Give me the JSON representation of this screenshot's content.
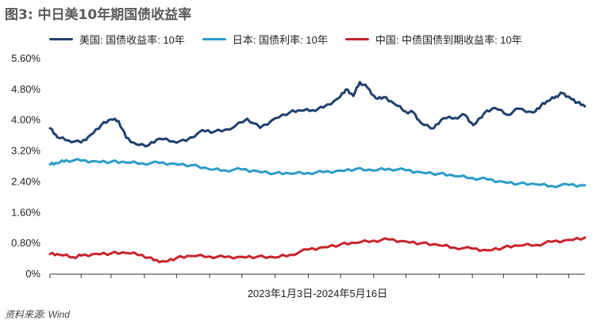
{
  "title": "图3: 中日美10年期国债收益率",
  "source": "资料来源: Wind",
  "chart_data": {
    "type": "line",
    "title": "图3: 中日美10年期国债收益率",
    "xlabel": "2023年1月3日-2024年5月16日",
    "ylabel": "",
    "x_range": [
      "2023-01-03",
      "2024-05-16"
    ],
    "ylim": [
      0,
      5.6
    ],
    "yticks": [
      "5.60%",
      "4.80%",
      "4.00%",
      "3.20%",
      "2.40%",
      "1.60%",
      "0.80%",
      "0%"
    ],
    "ytick_values": [
      5.6,
      4.8,
      4.0,
      3.2,
      2.4,
      1.6,
      0.8,
      0
    ],
    "grid": false,
    "legend_position": "top",
    "series": [
      {
        "name": "美国: 国债收益率: 10年",
        "color": "#1f3f6e",
        "x": [
          "2023-01-03",
          "2023-01-10",
          "2023-01-20",
          "2023-02-01",
          "2023-02-10",
          "2023-02-20",
          "2023-03-01",
          "2023-03-08",
          "2023-03-15",
          "2023-03-24",
          "2023-04-05",
          "2023-04-15",
          "2023-04-28",
          "2023-05-10",
          "2023-05-25",
          "2023-06-05",
          "2023-06-20",
          "2023-07-06",
          "2023-07-18",
          "2023-08-01",
          "2023-08-15",
          "2023-08-25",
          "2023-09-05",
          "2023-09-15",
          "2023-09-29",
          "2023-10-06",
          "2023-10-13",
          "2023-10-19",
          "2023-10-26",
          "2023-11-03",
          "2023-11-10",
          "2023-11-20",
          "2023-12-01",
          "2023-12-08",
          "2023-12-15",
          "2023-12-27",
          "2024-01-05",
          "2024-01-16",
          "2024-01-25",
          "2024-02-02",
          "2024-02-12",
          "2024-02-22",
          "2024-03-05",
          "2024-03-15",
          "2024-03-29",
          "2024-04-05",
          "2024-04-12",
          "2024-04-19",
          "2024-04-25",
          "2024-05-02",
          "2024-05-09",
          "2024-05-16"
        ],
        "values": [
          3.79,
          3.55,
          3.48,
          3.42,
          3.62,
          3.88,
          4.02,
          3.98,
          3.55,
          3.38,
          3.35,
          3.52,
          3.45,
          3.46,
          3.74,
          3.7,
          3.76,
          4.04,
          3.8,
          4.05,
          4.21,
          4.25,
          4.26,
          4.33,
          4.57,
          4.8,
          4.63,
          4.99,
          4.85,
          4.57,
          4.6,
          4.43,
          4.22,
          4.2,
          3.93,
          3.79,
          4.05,
          4.06,
          4.14,
          3.87,
          4.18,
          4.32,
          4.14,
          4.3,
          4.2,
          4.38,
          4.5,
          4.62,
          4.7,
          4.59,
          4.46,
          4.36
        ]
      },
      {
        "name": "日本: 国债利率: 10年",
        "color": "#2b9cc8",
        "x": [
          "2023-01-03",
          "2023-01-10",
          "2023-01-18",
          "2023-02-01",
          "2023-02-15",
          "2023-03-01",
          "2023-03-15",
          "2023-03-30",
          "2023-04-15",
          "2023-04-29",
          "2023-05-15",
          "2023-06-01",
          "2023-06-15",
          "2023-07-01",
          "2023-07-15",
          "2023-08-01",
          "2023-08-15",
          "2023-09-01",
          "2023-09-15",
          "2023-10-01",
          "2023-10-15",
          "2023-11-01",
          "2023-11-15",
          "2023-12-01",
          "2023-12-15",
          "2024-01-01",
          "2024-01-15",
          "2024-02-01",
          "2024-02-15",
          "2024-03-01",
          "2024-03-15",
          "2024-04-01",
          "2024-04-15",
          "2024-05-01",
          "2024-05-16"
        ],
        "values": [
          2.85,
          2.88,
          2.96,
          2.95,
          2.93,
          2.92,
          2.9,
          2.88,
          2.89,
          2.87,
          2.83,
          2.72,
          2.7,
          2.72,
          2.68,
          2.62,
          2.61,
          2.63,
          2.65,
          2.69,
          2.73,
          2.69,
          2.74,
          2.7,
          2.65,
          2.61,
          2.55,
          2.5,
          2.46,
          2.4,
          2.35,
          2.33,
          2.29,
          2.32,
          2.31
        ]
      },
      {
        "name": "中国: 中债国债到期收益率: 10年",
        "color": "#c8232c",
        "x": [
          "2023-01-03",
          "2023-01-12",
          "2023-01-25",
          "2023-02-01",
          "2023-02-15",
          "2023-03-01",
          "2023-03-15",
          "2023-03-30",
          "2023-04-10",
          "2023-04-20",
          "2023-05-01",
          "2023-05-15",
          "2023-06-01",
          "2023-06-15",
          "2023-07-01",
          "2023-07-15",
          "2023-08-01",
          "2023-08-15",
          "2023-09-01",
          "2023-09-15",
          "2023-10-01",
          "2023-10-15",
          "2023-11-01",
          "2023-11-15",
          "2023-12-01",
          "2023-12-15",
          "2024-01-01",
          "2024-01-15",
          "2024-02-01",
          "2024-02-15",
          "2024-03-01",
          "2024-03-15",
          "2024-04-01",
          "2024-04-15",
          "2024-05-01",
          "2024-05-16"
        ],
        "values": [
          0.52,
          0.5,
          0.44,
          0.48,
          0.53,
          0.54,
          0.55,
          0.5,
          0.36,
          0.33,
          0.42,
          0.47,
          0.46,
          0.44,
          0.45,
          0.45,
          0.43,
          0.5,
          0.64,
          0.7,
          0.77,
          0.81,
          0.87,
          0.9,
          0.85,
          0.8,
          0.75,
          0.69,
          0.66,
          0.62,
          0.69,
          0.74,
          0.76,
          0.84,
          0.89,
          0.95
        ]
      }
    ]
  }
}
